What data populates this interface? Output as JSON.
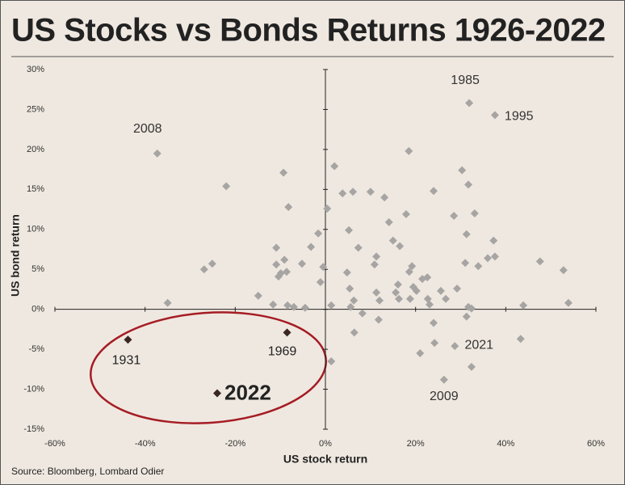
{
  "chart_data": {
    "type": "scatter",
    "title": "US Stocks vs Bonds Returns 1926-2022",
    "x_label": "US stock return",
    "y_label": "US bond return",
    "source": "Source: Bloomberg, Lombard Odier",
    "xlim": [
      -60,
      60
    ],
    "ylim": [
      -15,
      30
    ],
    "xticks": [
      {
        "value": -60,
        "label": "-60%"
      },
      {
        "value": -40,
        "label": "-40%"
      },
      {
        "value": -20,
        "label": "-20%"
      },
      {
        "value": 0,
        "label": "0%"
      },
      {
        "value": 20,
        "label": "20%"
      },
      {
        "value": 40,
        "label": "40%"
      },
      {
        "value": 60,
        "label": "60%"
      }
    ],
    "yticks": [
      {
        "value": -15,
        "label": "-15%"
      },
      {
        "value": -10,
        "label": "-10%"
      },
      {
        "value": -5,
        "label": "-5%"
      },
      {
        "value": 0,
        "label": "0%"
      },
      {
        "value": 5,
        "label": "5%"
      },
      {
        "value": 10,
        "label": "10%"
      },
      {
        "value": 15,
        "label": "15%"
      },
      {
        "value": 20,
        "label": "20%"
      },
      {
        "value": 25,
        "label": "25%"
      },
      {
        "value": 30,
        "label": "30%"
      }
    ],
    "color": "#a7a5a3",
    "highlight_color": "#3a2624",
    "x": [
      -37.3,
      -35,
      -22,
      -26.9,
      -25.1,
      -14.9,
      -11.6,
      -10.9,
      -10.4,
      -9.9,
      -10.9,
      -9.3,
      -8.2,
      -9.1,
      -8.6,
      -8.4,
      -7,
      -5.2,
      -4.5,
      -3.2,
      -1.6,
      -1.1,
      -0.5,
      0.4,
      1.3,
      2,
      3.8,
      4.8,
      5.2,
      5.4,
      5.6,
      6.1,
      6.3,
      6.4,
      7.3,
      8.2,
      10,
      10.9,
      11.3,
      11.3,
      12,
      11.8,
      13.1,
      14.1,
      15,
      15.6,
      16.1,
      16.5,
      16.3,
      17.9,
      18.5,
      18.6,
      18.8,
      19.2,
      19.5,
      20.2,
      21,
      21.5,
      22.6,
      22.7,
      23.1,
      24,
      24,
      24.2,
      25.6,
      26.3,
      26.7,
      28.5,
      28.7,
      29.2,
      30.3,
      31,
      31.3,
      31.7,
      31.7,
      31.9,
      32.4,
      32.4,
      33.1,
      33.9,
      36,
      37.3,
      37.6,
      37.6,
      43.3,
      43.9,
      47.6,
      52.8,
      53.9,
      31.3,
      1.3
    ],
    "y": [
      19.5,
      0.8,
      15.4,
      5,
      5.7,
      1.7,
      0.6,
      5.6,
      4.1,
      4.5,
      7.7,
      17.1,
      12.8,
      6.2,
      4.7,
      0.5,
      0.3,
      5.7,
      0.2,
      7.8,
      9.5,
      3.4,
      5.3,
      12.6,
      0.5,
      17.9,
      14.5,
      4.6,
      9.9,
      2.6,
      0.3,
      14.7,
      1.1,
      -2.9,
      7.7,
      -0.5,
      14.7,
      5.6,
      6.6,
      2.1,
      1.1,
      -1.3,
      14,
      10.9,
      8.6,
      2.1,
      3.1,
      7.9,
      1.3,
      11.9,
      19.8,
      4.7,
      1.3,
      5.4,
      2.8,
      2.3,
      -5.5,
      3.8,
      4,
      1.3,
      0.6,
      14.8,
      -1.7,
      -4.2,
      2.3,
      -8.8,
      1.3,
      11.7,
      -4.6,
      2.6,
      17.4,
      5.8,
      9.4,
      15.6,
      0.3,
      25.8,
      0.1,
      -7.2,
      12,
      5.4,
      6.4,
      8.6,
      24.3,
      6.6,
      -3.7,
      0.5,
      6,
      4.9,
      0.8,
      -0.9,
      -6.5
    ],
    "annotations": [
      {
        "text": "2008",
        "x": -37.3,
        "y": 19.5
      },
      {
        "text": "1985",
        "x": 31.9,
        "y": 25.8
      },
      {
        "text": "1995",
        "x": 37.6,
        "y": 24.3
      },
      {
        "text": "2021",
        "x": 28.7,
        "y": -4.6
      },
      {
        "text": "2009",
        "x": 26.3,
        "y": -8.8
      }
    ],
    "highlights": [
      {
        "label": "1931",
        "x": -43.8,
        "y": -3.8
      },
      {
        "label": "1969",
        "x": -8.5,
        "y": -2.9
      },
      {
        "label": "2022",
        "x": -24,
        "y": -10.5
      }
    ]
  }
}
